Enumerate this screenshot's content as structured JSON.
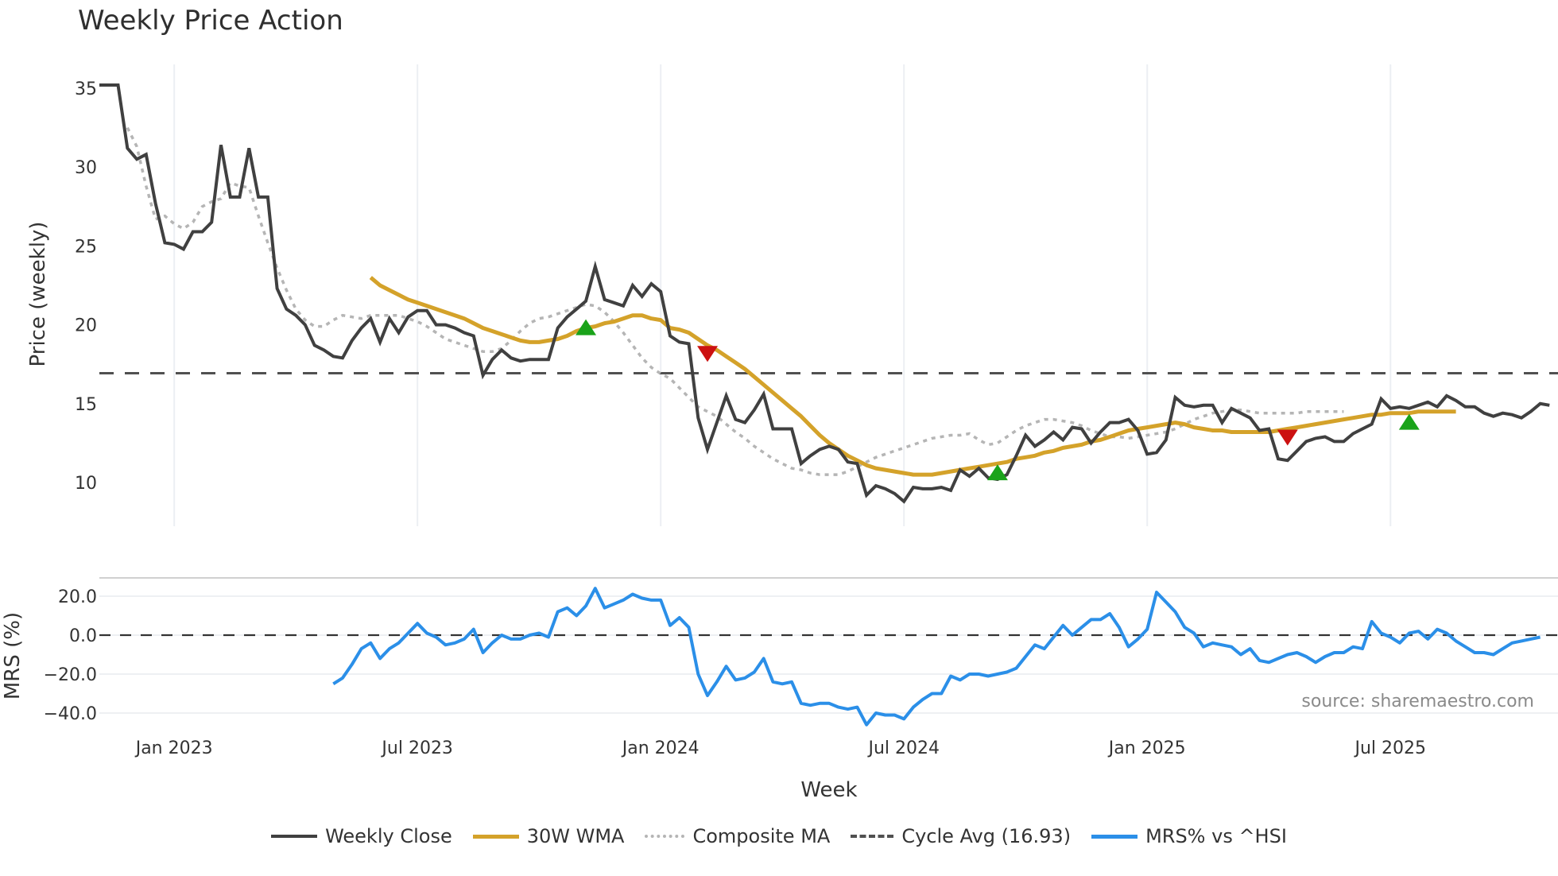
{
  "title": "Weekly Price Action",
  "source_note": "source: sharemaestro.com",
  "colors": {
    "close": "#404040",
    "wma": "#d4a22a",
    "composite": "#b5b5b5",
    "cycle": "#505050",
    "mrs": "#2b8fe8",
    "buy_marker": "#1aa31a",
    "sell_marker": "#cc1111",
    "grid": "#eef0f3"
  },
  "axes": {
    "price_ylabel": "Price (weekly)",
    "mrs_ylabel": "MRS (%)",
    "xlabel": "Week",
    "price_ticks": [
      "35",
      "30",
      "25",
      "20",
      "15",
      "10"
    ],
    "mrs_ticks": [
      "20.0",
      "0.0",
      "−20.0",
      "−40.0"
    ],
    "x_ticks": [
      "Jan 2023",
      "Jul 2023",
      "Jan 2024",
      "Jul 2024",
      "Jan 2025",
      "Jul 2025"
    ]
  },
  "legend": [
    {
      "label": "Weekly Close",
      "style": "solid",
      "color": "#404040"
    },
    {
      "label": "30W WMA",
      "style": "solid",
      "color": "#d4a22a"
    },
    {
      "label": "Composite MA",
      "style": "dotted",
      "color": "#b5b5b5"
    },
    {
      "label": "Cycle Avg (16.93)",
      "style": "dashed",
      "color": "#505050"
    },
    {
      "label": "MRS% vs ^HSI",
      "style": "solid",
      "color": "#2b8fe8"
    }
  ],
  "chart_data": [
    {
      "type": "line",
      "title": "Weekly Price Action",
      "xlabel": "Week",
      "ylabel": "Price (weekly)",
      "ylim": [
        7.5,
        36.5
      ],
      "x_tick_labels": [
        "Jan 2023",
        "Jul 2023",
        "Jan 2024",
        "Jul 2024",
        "Jan 2025",
        "Jul 2025"
      ],
      "x_tick_week_index": [
        8,
        34,
        60,
        86,
        112,
        138
      ],
      "grid": true,
      "legend_position": "bottom",
      "cycle_avg": 16.93,
      "series": [
        {
          "name": "Weekly Close",
          "start_index": 0,
          "values": [
            35.2,
            35.2,
            35.2,
            31.2,
            30.5,
            30.8,
            27.7,
            25.2,
            25.1,
            24.8,
            25.9,
            25.9,
            26.5,
            31.4,
            28.1,
            28.1,
            31.2,
            28.1,
            28.1,
            22.3,
            21.0,
            20.6,
            20.0,
            18.7,
            18.4,
            18.0,
            17.9,
            19.0,
            19.8,
            20.4,
            18.9,
            20.4,
            19.5,
            20.5,
            20.9,
            20.9,
            20.0,
            20.0,
            19.8,
            19.5,
            19.3,
            16.8,
            17.8,
            18.4,
            17.9,
            17.7,
            17.8,
            17.8,
            17.8,
            19.8,
            20.5,
            21.0,
            21.5,
            23.7,
            21.6,
            21.4,
            21.2,
            22.5,
            21.8,
            22.6,
            22.1,
            19.3,
            18.9,
            18.8,
            14.1,
            12.1,
            13.8,
            15.5,
            14.0,
            13.8,
            14.6,
            15.6,
            13.4,
            13.4,
            13.4,
            11.2,
            11.7,
            12.1,
            12.3,
            12.1,
            11.3,
            11.2,
            9.2,
            9.8,
            9.6,
            9.3,
            8.8,
            9.7,
            9.6,
            9.6,
            9.7,
            9.5,
            10.8,
            10.4,
            10.9,
            10.3,
            10.2,
            10.5,
            11.7,
            13.0,
            12.3,
            12.7,
            13.2,
            12.7,
            13.5,
            13.4,
            12.5,
            13.2,
            13.8,
            13.8,
            14.0,
            13.3,
            11.8,
            11.9,
            12.7,
            15.4,
            14.9,
            14.8,
            14.9,
            14.9,
            13.8,
            14.7,
            14.4,
            14.1,
            13.3,
            13.4,
            11.5,
            11.4,
            12.0,
            12.6,
            12.8,
            12.9,
            12.6,
            12.6,
            13.1,
            13.4,
            13.7,
            15.3,
            14.7,
            14.8,
            14.7,
            14.9,
            15.1,
            14.8,
            15.5,
            15.2,
            14.8,
            14.8,
            14.4,
            14.2,
            14.4,
            14.3,
            14.1,
            14.5,
            15.0,
            14.9
          ]
        },
        {
          "name": "30W WMA",
          "start_index": 29,
          "values": [
            23.0,
            22.5,
            22.2,
            21.9,
            21.6,
            21.4,
            21.2,
            21.0,
            20.8,
            20.6,
            20.4,
            20.1,
            19.8,
            19.6,
            19.4,
            19.2,
            19.0,
            18.9,
            18.9,
            19.0,
            19.1,
            19.3,
            19.6,
            19.8,
            19.9,
            20.1,
            20.2,
            20.4,
            20.6,
            20.6,
            20.4,
            20.3,
            19.8,
            19.7,
            19.5,
            19.1,
            18.7,
            18.4,
            18.0,
            17.6,
            17.2,
            16.7,
            16.2,
            15.7,
            15.2,
            14.7,
            14.2,
            13.6,
            13.0,
            12.5,
            12.1,
            11.7,
            11.4,
            11.1,
            10.9,
            10.8,
            10.7,
            10.6,
            10.5,
            10.5,
            10.5,
            10.6,
            10.7,
            10.8,
            10.9,
            11.0,
            11.1,
            11.2,
            11.3,
            11.5,
            11.6,
            11.7,
            11.9,
            12.0,
            12.2,
            12.3,
            12.4,
            12.6,
            12.7,
            12.9,
            13.1,
            13.3,
            13.4,
            13.5,
            13.6,
            13.7,
            13.8,
            13.7,
            13.5,
            13.4,
            13.3,
            13.3,
            13.2,
            13.2,
            13.2,
            13.2,
            13.2,
            13.3,
            13.4,
            13.5,
            13.6,
            13.7,
            13.8,
            13.9,
            14.0,
            14.1,
            14.2,
            14.3,
            14.3,
            14.4,
            14.4,
            14.4,
            14.5,
            14.5,
            14.5,
            14.5,
            14.5
          ]
        },
        {
          "name": "Composite MA",
          "start_index": 3,
          "values": [
            32.5,
            31.3,
            28.8,
            26.7,
            26.9,
            26.4,
            26.1,
            26.5,
            27.5,
            27.8,
            28.0,
            29.0,
            28.8,
            28.7,
            26.9,
            25.2,
            23.6,
            22.2,
            21.0,
            20.3,
            19.9,
            19.9,
            20.3,
            20.6,
            20.5,
            20.4,
            20.6,
            20.6,
            20.6,
            20.6,
            20.4,
            20.2,
            19.9,
            19.5,
            19.1,
            18.9,
            18.7,
            18.5,
            18.3,
            18.3,
            18.5,
            19.0,
            19.6,
            20.1,
            20.4,
            20.5,
            20.7,
            20.9,
            21.1,
            21.3,
            21.2,
            20.8,
            20.2,
            19.5,
            18.7,
            17.9,
            17.3,
            16.9,
            16.6,
            16.0,
            15.4,
            14.8,
            14.5,
            14.2,
            13.7,
            13.2,
            12.8,
            12.3,
            11.9,
            11.5,
            11.2,
            10.9,
            10.8,
            10.6,
            10.5,
            10.5,
            10.5,
            10.7,
            11.0,
            11.3,
            11.6,
            11.8,
            12.0,
            12.2,
            12.4,
            12.6,
            12.8,
            12.9,
            13.0,
            13.0,
            13.1,
            12.7,
            12.4,
            12.5,
            12.9,
            13.3,
            13.6,
            13.8,
            14.0,
            14.0,
            13.9,
            13.8,
            13.6,
            13.3,
            13.1,
            12.9,
            12.9,
            12.8,
            12.9,
            13.0,
            13.1,
            13.2,
            13.4,
            13.7,
            14.0,
            14.2,
            14.4,
            14.5,
            14.6,
            14.6,
            14.5,
            14.4,
            14.4,
            14.4,
            14.4,
            14.4,
            14.5,
            14.5,
            14.5,
            14.5,
            14.5
          ]
        },
        {
          "name": "Cycle Avg (16.93)",
          "constant": 16.93
        }
      ],
      "signals": [
        {
          "type": "buy",
          "week_index": 52,
          "value": 19.8
        },
        {
          "type": "sell",
          "week_index": 65,
          "value": 18.2
        },
        {
          "type": "buy",
          "week_index": 96,
          "value": 10.6
        },
        {
          "type": "sell",
          "week_index": 127,
          "value": 12.9
        },
        {
          "type": "buy",
          "week_index": 140,
          "value": 13.8
        }
      ]
    },
    {
      "type": "line",
      "title": "",
      "xlabel": "Week",
      "ylabel": "MRS (%)",
      "ylim": [
        -47,
        32
      ],
      "y_ticks": [
        20,
        0,
        -20,
        -40
      ],
      "zero_line": "dashed",
      "series": [
        {
          "name": "MRS% vs ^HSI",
          "start_index": 25,
          "values": [
            -25,
            -22,
            -15,
            -7,
            -4,
            -12,
            -7,
            -4,
            1,
            6,
            1,
            -1,
            -5,
            -4,
            -2,
            3,
            -9,
            -4,
            0,
            -2,
            -2,
            0,
            1,
            -1,
            12,
            14,
            10,
            15,
            24,
            14,
            16,
            18,
            21,
            19,
            18,
            18,
            5,
            9,
            4,
            -20,
            -31,
            -24,
            -16,
            -23,
            -22,
            -19,
            -12,
            -24,
            -25,
            -24,
            -35,
            -36,
            -35,
            -35,
            -37,
            -38,
            -37,
            -46,
            -40,
            -41,
            -41,
            -43,
            -37,
            -33,
            -30,
            -30,
            -21,
            -23,
            -20,
            -20,
            -21,
            -20,
            -19,
            -17,
            -11,
            -5,
            -7,
            -1,
            5,
            0,
            4,
            8,
            8,
            11,
            4,
            -6,
            -2,
            3,
            22,
            17,
            12,
            4,
            1,
            -6,
            -4,
            -5,
            -6,
            -10,
            -7,
            -13,
            -14,
            -12,
            -10,
            -9,
            -11,
            -14,
            -11,
            -9,
            -9,
            -6,
            -7,
            7,
            1,
            -1,
            -4,
            1,
            2,
            -2,
            3,
            1,
            -3,
            -6,
            -9,
            -9,
            -10,
            -7,
            -4,
            -3,
            -2,
            -1
          ]
        }
      ]
    }
  ]
}
